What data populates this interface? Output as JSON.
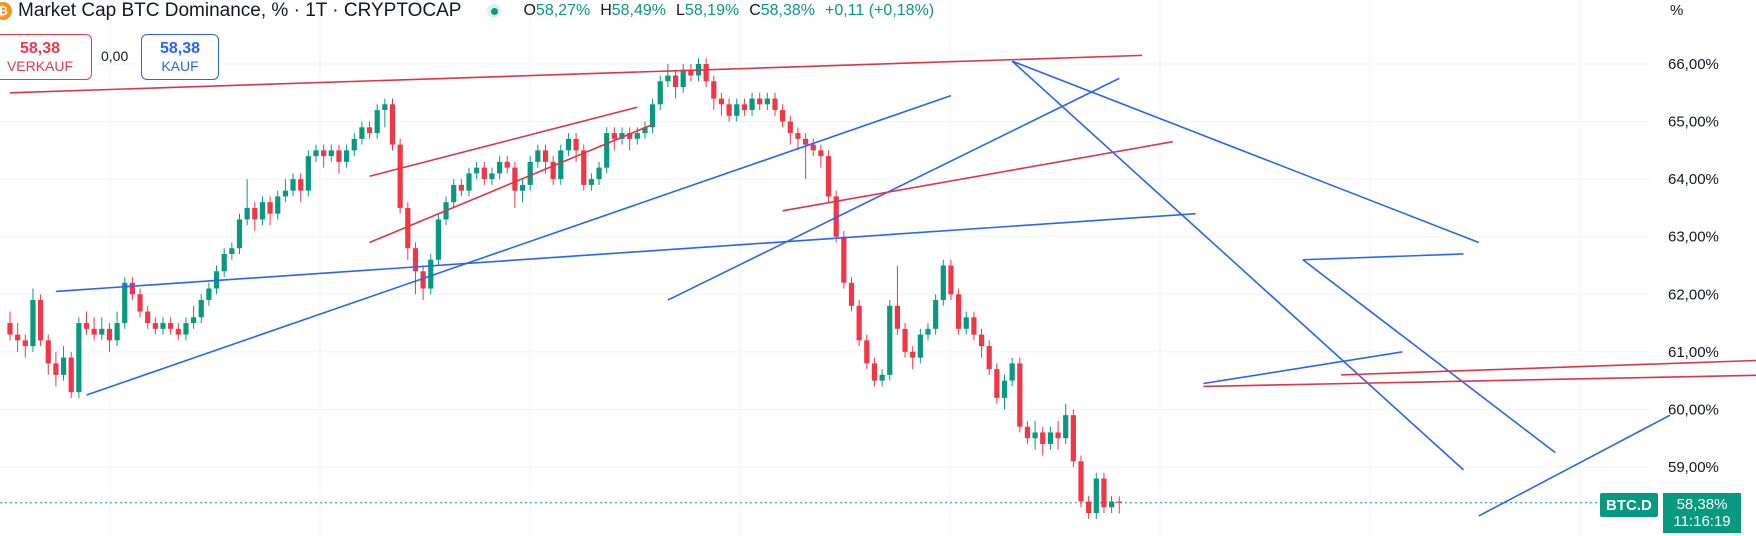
{
  "header": {
    "logo_text": "₿",
    "title": "Market Cap BTC Dominance, % · 1T · CRYPTOCAP",
    "ohlc": {
      "o_label": "O",
      "o_value": "58,27%",
      "h_label": "H",
      "h_value": "58,49%",
      "l_label": "L",
      "l_value": "58,19%",
      "c_label": "C",
      "c_value": "58,38%",
      "change": "+0,11 (+0,18%)"
    }
  },
  "trade": {
    "sell_price": "58,38",
    "sell_label": "VERKAUF",
    "spread": "0,00",
    "buy_price": "58,38",
    "buy_label": "KAUF"
  },
  "price_axis": {
    "unit": "%",
    "symbol_badge": "BTC.D",
    "last_value": "58,38%",
    "countdown": "11:16:19"
  },
  "colors": {
    "up": "#089981",
    "down": "#f23645",
    "trend_blue": "#2962ff",
    "trend_red": "#e03445",
    "grid": "#f0f3fa"
  },
  "chart_data": {
    "type": "candlestick",
    "y_unit": "%",
    "ylim": [
      58.15,
      66.35
    ],
    "y_ticks": [
      "66,00%",
      "65,00%",
      "64,00%",
      "63,00%",
      "62,00%",
      "61,00%",
      "60,00%",
      "59,00%"
    ],
    "y_tick_values": [
      66,
      65,
      64,
      63,
      62,
      61,
      60,
      59
    ],
    "last_price": 58.38,
    "candles": [
      [
        61.5,
        61.3,
        61.7,
        61.2
      ],
      [
        61.3,
        61.2,
        61.5,
        61.0
      ],
      [
        61.2,
        61.1,
        61.3,
        60.9
      ],
      [
        61.1,
        61.9,
        62.1,
        61.0
      ],
      [
        61.9,
        61.2,
        62.0,
        61.1
      ],
      [
        61.2,
        60.8,
        61.3,
        60.6
      ],
      [
        60.8,
        60.6,
        61.0,
        60.4
      ],
      [
        60.6,
        60.9,
        61.1,
        60.5
      ],
      [
        60.9,
        60.3,
        61.0,
        60.2
      ],
      [
        60.3,
        61.5,
        61.6,
        60.2
      ],
      [
        61.5,
        61.4,
        61.7,
        61.3
      ],
      [
        61.4,
        61.3,
        61.6,
        61.2
      ],
      [
        61.3,
        61.4,
        61.6,
        61.2
      ],
      [
        61.4,
        61.2,
        61.5,
        61.0
      ],
      [
        61.2,
        61.5,
        61.7,
        61.1
      ],
      [
        61.5,
        62.2,
        62.3,
        61.4
      ],
      [
        62.2,
        62.0,
        62.3,
        61.9
      ],
      [
        62.0,
        61.7,
        62.1,
        61.6
      ],
      [
        61.7,
        61.5,
        61.8,
        61.4
      ],
      [
        61.5,
        61.4,
        61.6,
        61.3
      ],
      [
        61.4,
        61.5,
        61.6,
        61.3
      ],
      [
        61.5,
        61.4,
        61.6,
        61.3
      ],
      [
        61.4,
        61.3,
        61.5,
        61.2
      ],
      [
        61.3,
        61.5,
        61.6,
        61.2
      ],
      [
        61.5,
        61.6,
        61.8,
        61.4
      ],
      [
        61.6,
        61.9,
        62.0,
        61.5
      ],
      [
        61.9,
        62.1,
        62.2,
        61.8
      ],
      [
        62.1,
        62.4,
        62.5,
        62.0
      ],
      [
        62.4,
        62.7,
        62.8,
        62.3
      ],
      [
        62.7,
        62.8,
        62.9,
        62.6
      ],
      [
        62.8,
        63.3,
        63.4,
        62.7
      ],
      [
        63.3,
        63.5,
        64.0,
        63.2
      ],
      [
        63.5,
        63.3,
        63.6,
        63.1
      ],
      [
        63.3,
        63.6,
        63.7,
        63.2
      ],
      [
        63.6,
        63.4,
        63.7,
        63.2
      ],
      [
        63.4,
        63.7,
        63.8,
        63.3
      ],
      [
        63.7,
        63.8,
        64.0,
        63.6
      ],
      [
        63.8,
        64.0,
        64.1,
        63.7
      ],
      [
        64.0,
        63.8,
        64.1,
        63.6
      ],
      [
        63.8,
        64.4,
        64.5,
        63.7
      ],
      [
        64.4,
        64.5,
        64.6,
        64.3
      ],
      [
        64.5,
        64.4,
        64.6,
        64.2
      ],
      [
        64.4,
        64.5,
        64.6,
        64.3
      ],
      [
        64.5,
        64.3,
        64.6,
        64.1
      ],
      [
        64.3,
        64.5,
        64.6,
        64.2
      ],
      [
        64.5,
        64.7,
        64.8,
        64.4
      ],
      [
        64.7,
        64.9,
        65.0,
        64.6
      ],
      [
        64.9,
        64.8,
        65.0,
        64.7
      ],
      [
        64.8,
        65.2,
        65.3,
        64.7
      ],
      [
        65.2,
        65.3,
        65.4,
        64.9
      ],
      [
        65.3,
        64.6,
        65.4,
        64.5
      ],
      [
        64.6,
        63.5,
        64.7,
        63.4
      ],
      [
        63.5,
        62.8,
        63.6,
        62.6
      ],
      [
        62.8,
        62.4,
        62.9,
        62.0
      ],
      [
        62.4,
        62.1,
        62.5,
        61.9
      ],
      [
        62.1,
        62.6,
        62.7,
        62.0
      ],
      [
        62.6,
        63.3,
        63.4,
        62.5
      ],
      [
        63.3,
        63.6,
        63.7,
        63.2
      ],
      [
        63.6,
        63.9,
        64.0,
        63.5
      ],
      [
        63.9,
        63.8,
        64.0,
        63.7
      ],
      [
        63.8,
        64.1,
        64.2,
        63.7
      ],
      [
        64.1,
        64.2,
        64.3,
        64.0
      ],
      [
        64.2,
        64.0,
        64.3,
        63.9
      ],
      [
        64.0,
        64.1,
        64.2,
        63.9
      ],
      [
        64.1,
        64.3,
        64.4,
        64.0
      ],
      [
        64.3,
        64.2,
        64.4,
        64.1
      ],
      [
        64.2,
        63.8,
        64.3,
        63.5
      ],
      [
        63.8,
        63.9,
        64.0,
        63.6
      ],
      [
        63.9,
        64.3,
        64.4,
        63.8
      ],
      [
        64.3,
        64.5,
        64.6,
        64.2
      ],
      [
        64.5,
        64.3,
        64.6,
        64.1
      ],
      [
        64.3,
        64.0,
        64.4,
        63.9
      ],
      [
        64.0,
        64.5,
        64.6,
        63.9
      ],
      [
        64.5,
        64.7,
        64.8,
        64.4
      ],
      [
        64.7,
        64.5,
        64.8,
        64.3
      ],
      [
        64.5,
        63.9,
        64.6,
        63.8
      ],
      [
        63.9,
        64.0,
        64.1,
        63.8
      ],
      [
        64.0,
        64.2,
        64.3,
        63.9
      ],
      [
        64.2,
        64.8,
        64.9,
        64.1
      ],
      [
        64.8,
        64.7,
        64.9,
        64.5
      ],
      [
        64.7,
        64.8,
        64.9,
        64.6
      ],
      [
        64.8,
        64.7,
        64.9,
        64.5
      ],
      [
        64.7,
        64.8,
        64.9,
        64.6
      ],
      [
        64.8,
        64.9,
        65.0,
        64.7
      ],
      [
        64.9,
        65.3,
        65.4,
        64.8
      ],
      [
        65.3,
        65.7,
        65.8,
        65.2
      ],
      [
        65.7,
        65.8,
        66.0,
        65.6
      ],
      [
        65.8,
        65.6,
        65.9,
        65.4
      ],
      [
        65.6,
        65.9,
        66.0,
        65.5
      ],
      [
        65.9,
        65.8,
        66.0,
        65.7
      ],
      [
        65.8,
        66.0,
        66.1,
        65.7
      ],
      [
        66.0,
        65.7,
        66.1,
        65.6
      ],
      [
        65.7,
        65.4,
        65.8,
        65.2
      ],
      [
        65.4,
        65.3,
        65.5,
        65.1
      ],
      [
        65.3,
        65.1,
        65.4,
        65.0
      ],
      [
        65.1,
        65.3,
        65.4,
        65.0
      ],
      [
        65.3,
        65.2,
        65.4,
        65.1
      ],
      [
        65.2,
        65.4,
        65.5,
        65.1
      ],
      [
        65.4,
        65.3,
        65.5,
        65.2
      ],
      [
        65.3,
        65.4,
        65.5,
        65.2
      ],
      [
        65.4,
        65.2,
        65.5,
        65.1
      ],
      [
        65.2,
        65.0,
        65.3,
        64.9
      ],
      [
        65.0,
        64.8,
        65.1,
        64.6
      ],
      [
        64.8,
        64.7,
        64.9,
        64.5
      ],
      [
        64.7,
        64.6,
        64.8,
        64.0
      ],
      [
        64.6,
        64.5,
        64.7,
        64.4
      ],
      [
        64.5,
        64.4,
        64.6,
        64.2
      ],
      [
        64.4,
        63.7,
        64.5,
        63.6
      ],
      [
        63.7,
        63.0,
        63.8,
        62.9
      ],
      [
        63.0,
        62.2,
        63.1,
        62.1
      ],
      [
        62.2,
        61.8,
        62.3,
        61.7
      ],
      [
        61.8,
        61.2,
        61.9,
        61.1
      ],
      [
        61.2,
        60.8,
        61.3,
        60.7
      ],
      [
        60.8,
        60.5,
        60.9,
        60.4
      ],
      [
        60.5,
        60.6,
        60.7,
        60.4
      ],
      [
        60.6,
        61.8,
        61.9,
        60.5
      ],
      [
        61.8,
        61.4,
        62.5,
        61.3
      ],
      [
        61.4,
        61.0,
        61.5,
        60.9
      ],
      [
        61.0,
        60.9,
        61.1,
        60.7
      ],
      [
        60.9,
        61.3,
        61.4,
        60.8
      ],
      [
        61.3,
        61.4,
        61.5,
        61.2
      ],
      [
        61.4,
        61.9,
        62.0,
        61.3
      ],
      [
        61.9,
        62.5,
        62.6,
        61.8
      ],
      [
        62.5,
        62.0,
        62.6,
        61.9
      ],
      [
        62.0,
        61.4,
        62.1,
        61.3
      ],
      [
        61.4,
        61.6,
        61.7,
        61.3
      ],
      [
        61.6,
        61.3,
        61.7,
        61.2
      ],
      [
        61.3,
        61.1,
        61.4,
        60.9
      ],
      [
        61.1,
        60.7,
        61.2,
        60.6
      ],
      [
        60.7,
        60.2,
        60.8,
        60.1
      ],
      [
        60.2,
        60.5,
        60.6,
        60.0
      ],
      [
        60.5,
        60.8,
        60.9,
        60.4
      ],
      [
        60.8,
        59.7,
        60.9,
        59.6
      ],
      [
        59.7,
        59.5,
        59.8,
        59.4
      ],
      [
        59.5,
        59.6,
        59.8,
        59.3
      ],
      [
        59.6,
        59.4,
        59.7,
        59.2
      ],
      [
        59.4,
        59.6,
        59.7,
        59.3
      ],
      [
        59.6,
        59.5,
        59.8,
        59.3
      ],
      [
        59.5,
        59.9,
        60.1,
        59.4
      ],
      [
        59.9,
        59.1,
        60.0,
        59.0
      ],
      [
        59.1,
        58.4,
        59.2,
        58.3
      ],
      [
        58.4,
        58.2,
        58.5,
        58.1
      ],
      [
        58.2,
        58.8,
        58.9,
        58.1
      ],
      [
        58.8,
        58.3,
        58.9,
        58.2
      ],
      [
        58.3,
        58.4,
        58.5,
        58.2
      ],
      [
        58.4,
        58.38,
        58.49,
        58.19
      ]
    ],
    "trendlines": [
      {
        "color": "red",
        "p1": [
          0,
          65.5
        ],
        "p2": [
          148,
          66.15
        ]
      },
      {
        "color": "red",
        "p1": [
          47,
          64.05
        ],
        "p2": [
          82,
          65.25
        ]
      },
      {
        "color": "red",
        "p1": [
          47,
          62.9
        ],
        "p2": [
          84,
          64.95
        ]
      },
      {
        "color": "blue",
        "p1": [
          6,
          62.05
        ],
        "p2": [
          155,
          63.4
        ]
      },
      {
        "color": "blue",
        "p1": [
          10,
          60.25
        ],
        "p2": [
          123,
          65.45
        ]
      },
      {
        "color": "blue",
        "p1": [
          86,
          61.9
        ],
        "p2": [
          145,
          65.75
        ]
      },
      {
        "color": "red",
        "p1": [
          101,
          63.45
        ],
        "p2": [
          152,
          64.65
        ]
      },
      {
        "color": "blue",
        "p1": [
          131,
          66.05
        ],
        "p2": [
          192,
          62.9
        ]
      },
      {
        "color": "blue",
        "p1": [
          131,
          66.05
        ],
        "p2": [
          190,
          58.95
        ]
      },
      {
        "color": "blue",
        "p1": [
          169,
          62.6
        ],
        "p2": [
          202,
          59.25
        ]
      },
      {
        "color": "blue",
        "p1": [
          169,
          62.6
        ],
        "p2": [
          190,
          62.7
        ]
      },
      {
        "color": "blue",
        "p1": [
          156,
          60.45
        ],
        "p2": [
          182,
          61.0
        ]
      },
      {
        "color": "red",
        "p1": [
          156,
          60.4
        ],
        "p2": [
          250,
          60.65
        ]
      },
      {
        "color": "red",
        "p1": [
          174,
          60.6
        ],
        "p2": [
          250,
          60.95
        ]
      },
      {
        "color": "blue",
        "p1": [
          192,
          58.15
        ],
        "p2": [
          217,
          59.9
        ]
      }
    ]
  }
}
